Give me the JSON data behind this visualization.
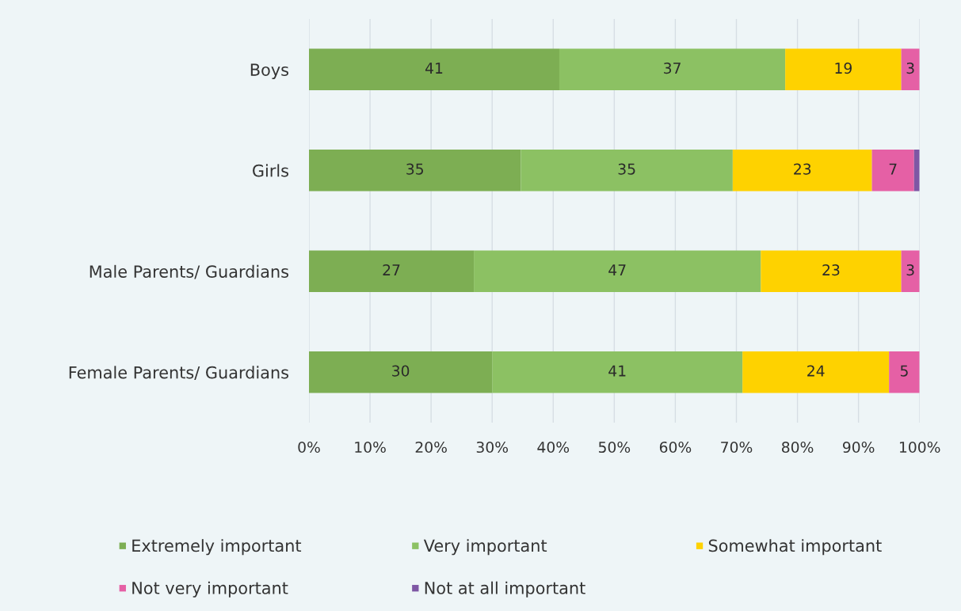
{
  "chart_data": {
    "type": "bar",
    "orientation": "horizontal",
    "stacked": true,
    "categories": [
      "Boys",
      "Girls",
      "Male Parents/ Guardians",
      "Female Parents/ Guardians"
    ],
    "series": [
      {
        "name": "Extremely important",
        "color": "#7dae53",
        "values": [
          41,
          34.7,
          27,
          30
        ],
        "value_labels": [
          "41",
          "35",
          "27",
          "30"
        ]
      },
      {
        "name": "Very important",
        "color": "#8cc163",
        "values": [
          37,
          34.7,
          47,
          41
        ],
        "value_labels": [
          "37",
          "35",
          "47",
          "41"
        ]
      },
      {
        "name": "Somewhat important",
        "color": "#fed200",
        "values": [
          19,
          22.8,
          23,
          24
        ],
        "value_labels": [
          "19",
          "23",
          "23",
          "24"
        ]
      },
      {
        "name": "Not very important",
        "color": "#e560a5",
        "values": [
          3,
          6.9,
          3,
          5
        ],
        "value_labels": [
          "3",
          "7",
          "3",
          "5"
        ]
      },
      {
        "name": "Not at all important",
        "color": "#7e57a4",
        "values": [
          null,
          0.9,
          null,
          null
        ],
        "value_labels": [
          null,
          null,
          null,
          null
        ]
      }
    ],
    "xlim": [
      0,
      100
    ],
    "xticks": [
      {
        "value": 0,
        "label": "0%"
      },
      {
        "value": 10,
        "label": "10%"
      },
      {
        "value": 20,
        "label": "20%"
      },
      {
        "value": 30,
        "label": "30%"
      },
      {
        "value": 40,
        "label": "40%"
      },
      {
        "value": 50,
        "label": "50%"
      },
      {
        "value": 60,
        "label": "60%"
      },
      {
        "value": 70,
        "label": "70%"
      },
      {
        "value": 80,
        "label": "80%"
      },
      {
        "value": 90,
        "label": "90%"
      },
      {
        "value": 100,
        "label": "100%"
      }
    ],
    "grid": "x",
    "legend": "bottom"
  }
}
